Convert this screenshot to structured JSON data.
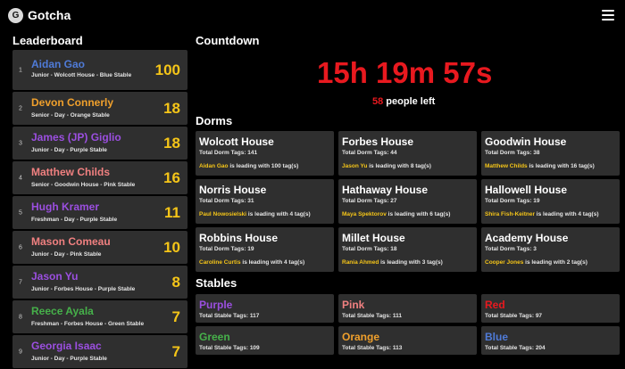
{
  "app": {
    "title": "Gotcha",
    "logo_letter": "G"
  },
  "sections": {
    "leaderboard": "Leaderboard",
    "countdown": "Countdown",
    "dorms": "Dorms",
    "stables": "Stables"
  },
  "countdown": {
    "time": "15h 19m 57s",
    "people_left_count": "58",
    "people_left_label": " people left"
  },
  "colors": {
    "blue": "#4f7bd8",
    "orange": "#f0a02c",
    "purple": "#9b4fe0",
    "pink": "#f08080",
    "green": "#46b04a",
    "red": "#e8191f",
    "gold": "#f5c518"
  },
  "leaderboard": [
    {
      "rank": "1",
      "name": "Aidan Gao",
      "sub": "Junior - Wolcott House - Blue Stable",
      "score": "100",
      "color": "#4f7bd8"
    },
    {
      "rank": "2",
      "name": "Devon Connerly",
      "sub": "Senior - Day - Orange Stable",
      "score": "18",
      "color": "#f0a02c"
    },
    {
      "rank": "3",
      "name": "James (JP) Giglio",
      "sub": "Junior - Day - Purple Stable",
      "score": "18",
      "color": "#9b4fe0"
    },
    {
      "rank": "4",
      "name": "Matthew Childs",
      "sub": "Senior - Goodwin House - Pink Stable",
      "score": "16",
      "color": "#f08080"
    },
    {
      "rank": "5",
      "name": "Hugh Kramer",
      "sub": "Freshman - Day - Purple Stable",
      "score": "11",
      "color": "#9b4fe0"
    },
    {
      "rank": "6",
      "name": "Mason Comeau",
      "sub": "Junior - Day - Pink Stable",
      "score": "10",
      "color": "#f08080"
    },
    {
      "rank": "7",
      "name": "Jason Yu",
      "sub": "Junior - Forbes House - Purple Stable",
      "score": "8",
      "color": "#9b4fe0"
    },
    {
      "rank": "8",
      "name": "Reece Ayala",
      "sub": "Freshman - Forbes House - Green Stable",
      "score": "7",
      "color": "#46b04a"
    },
    {
      "rank": "9",
      "name": "Georgia Isaac",
      "sub": "Junior - Day - Purple Stable",
      "score": "7",
      "color": "#9b4fe0"
    }
  ],
  "dorms": [
    {
      "name": "Wolcott House",
      "total": "Total Dorm Tags: 141",
      "leader": "Aidan Gao",
      "leader_text": " is leading with 100 tag(s)"
    },
    {
      "name": "Forbes House",
      "total": "Total Dorm Tags: 44",
      "leader": "Jason Yu",
      "leader_text": " is leading with 8 tag(s)"
    },
    {
      "name": "Goodwin House",
      "total": "Total Dorm Tags: 38",
      "leader": "Matthew Childs",
      "leader_text": " is leading with 16 tag(s)"
    },
    {
      "name": "Norris House",
      "total": "Total Dorm Tags: 31",
      "leader": "Paul Nowosielski",
      "leader_text": " is leading with 4 tag(s)"
    },
    {
      "name": "Hathaway House",
      "total": "Total Dorm Tags: 27",
      "leader": "Maya Spektorov",
      "leader_text": " is leading with 6 tag(s)"
    },
    {
      "name": "Hallowell House",
      "total": "Total Dorm Tags: 19",
      "leader": "Shira Fish-Keitner",
      "leader_text": " is leading with 4 tag(s)"
    },
    {
      "name": "Robbins House",
      "total": "Total Dorm Tags: 19",
      "leader": "Caroline Curtis",
      "leader_text": " is leading with 4 tag(s)"
    },
    {
      "name": "Millet House",
      "total": "Total Dorm Tags: 18",
      "leader": "Rania Ahmed",
      "leader_text": " is leading with 3 tag(s)"
    },
    {
      "name": "Academy House",
      "total": "Total Dorm Tags: 3",
      "leader": "Cooper Jones",
      "leader_text": " is leading with 2 tag(s)"
    }
  ],
  "stables": [
    {
      "name": "Purple",
      "total": "Total Stable Tags: 117",
      "color": "#9b4fe0"
    },
    {
      "name": "Pink",
      "total": "Total Stable Tags: 111",
      "color": "#f08080"
    },
    {
      "name": "Red",
      "total": "Total Stable Tags: 97",
      "color": "#e8191f"
    },
    {
      "name": "Green",
      "total": "Total Stable Tags: 109",
      "color": "#46b04a"
    },
    {
      "name": "Orange",
      "total": "Total Stable Tags: 113",
      "color": "#f0a02c"
    },
    {
      "name": "Blue",
      "total": "Total Stable Tags: 204",
      "color": "#4f7bd8"
    }
  ]
}
